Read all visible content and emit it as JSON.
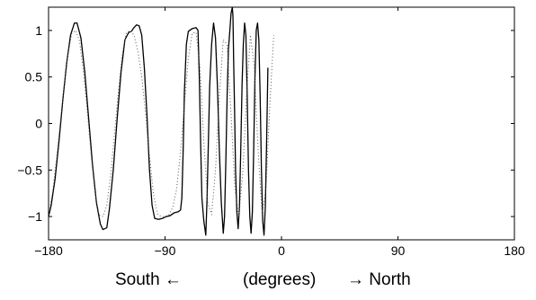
{
  "chart_data": {
    "type": "line",
    "xlim": [
      -180,
      180
    ],
    "ylim": [
      -1.25,
      1.25
    ],
    "xticks": [
      -180,
      -90,
      0,
      90,
      180
    ],
    "xtick_labels": [
      "−180",
      "−90",
      "0",
      "90",
      "180"
    ],
    "yticks": [
      -1,
      -0.5,
      0,
      0.5,
      1
    ],
    "ytick_labels": [
      "−1",
      "−0.5",
      "0",
      "0.5",
      "1"
    ],
    "xlabel_left": "South ←",
    "xlabel_center": "(degrees)",
    "xlabel_right": "→ North",
    "grid": false,
    "series": [
      {
        "style": "solid",
        "color": "#000000",
        "points": [
          [
            -180,
            -1.0
          ],
          [
            -178,
            -0.88
          ],
          [
            -175,
            -0.6
          ],
          [
            -172,
            -0.2
          ],
          [
            -169,
            0.25
          ],
          [
            -166,
            0.65
          ],
          [
            -163,
            0.95
          ],
          [
            -160,
            1.08
          ],
          [
            -158,
            1.08
          ],
          [
            -155,
            0.92
          ],
          [
            -152,
            0.55
          ],
          [
            -149,
            0.05
          ],
          [
            -146,
            -0.45
          ],
          [
            -143,
            -0.85
          ],
          [
            -140,
            -1.08
          ],
          [
            -138,
            -1.14
          ],
          [
            -135,
            -1.12
          ],
          [
            -133,
            -0.92
          ],
          [
            -130,
            -0.5
          ],
          [
            -127,
            0.05
          ],
          [
            -124,
            0.55
          ],
          [
            -121,
            0.9
          ],
          [
            -118,
            0.98
          ],
          [
            -116,
            0.99
          ],
          [
            -114,
            1.03
          ],
          [
            -112,
            1.06
          ],
          [
            -110,
            1.05
          ],
          [
            -108,
            0.95
          ],
          [
            -106,
            0.6
          ],
          [
            -104,
            0.1
          ],
          [
            -102,
            -0.5
          ],
          [
            -100,
            -0.88
          ],
          [
            -98,
            -1.02
          ],
          [
            -95,
            -1.03
          ],
          [
            -92,
            -1.02
          ],
          [
            -89,
            -1.0
          ],
          [
            -86,
            -0.99
          ],
          [
            -83,
            -0.96
          ],
          [
            -80,
            -0.95
          ],
          [
            -78,
            -0.93
          ],
          [
            -77,
            -0.8
          ],
          [
            -76,
            -0.3
          ],
          [
            -75,
            0.35
          ],
          [
            -73.5,
            0.85
          ],
          [
            -72,
            0.99
          ],
          [
            -69,
            1.02
          ],
          [
            -66,
            1.03
          ],
          [
            -64.5,
            1.0
          ],
          [
            -63.5,
            0.5
          ],
          [
            -62.5,
            -0.2
          ],
          [
            -61.5,
            -0.8
          ],
          [
            -60,
            -1.05
          ],
          [
            -58.5,
            -1.2
          ],
          [
            -57.5,
            -0.8
          ],
          [
            -56.5,
            -0.2
          ],
          [
            -55.5,
            0.4
          ],
          [
            -54,
            0.85
          ],
          [
            -52.5,
            1.08
          ],
          [
            -51,
            0.92
          ],
          [
            -49.5,
            0.4
          ],
          [
            -48,
            -0.3
          ],
          [
            -46.5,
            -0.85
          ],
          [
            -45,
            -1.18
          ],
          [
            -44,
            -1.0
          ],
          [
            -43,
            -0.4
          ],
          [
            -42,
            0.3
          ],
          [
            -41,
            0.8
          ],
          [
            -40,
            0.98
          ],
          [
            -39,
            1.18
          ],
          [
            -38,
            1.25
          ],
          [
            -37.5,
            1.15
          ],
          [
            -37,
            0.7
          ],
          [
            -36.2,
            0.1
          ],
          [
            -35.5,
            -0.5
          ],
          [
            -34.5,
            -0.95
          ],
          [
            -33.5,
            -1.13
          ],
          [
            -32.5,
            -0.9
          ],
          [
            -31.5,
            -0.3
          ],
          [
            -30.5,
            0.4
          ],
          [
            -29.5,
            0.85
          ],
          [
            -28.5,
            1.08
          ],
          [
            -27.5,
            0.95
          ],
          [
            -26.5,
            0.3
          ],
          [
            -25.5,
            -0.5
          ],
          [
            -24.5,
            -1.0
          ],
          [
            -23.5,
            -1.18
          ],
          [
            -22.5,
            -0.95
          ],
          [
            -21.5,
            -0.3
          ],
          [
            -20.5,
            0.5
          ],
          [
            -19.5,
            1.0
          ],
          [
            -18.5,
            1.08
          ],
          [
            -17.5,
            0.9
          ],
          [
            -16.5,
            0.3
          ],
          [
            -15.5,
            -0.5
          ],
          [
            -14.5,
            -1.05
          ],
          [
            -13.5,
            -1.2
          ],
          [
            -12.5,
            -0.9
          ],
          [
            -11.5,
            -0.2
          ],
          [
            -10.5,
            0.6
          ]
        ]
      },
      {
        "style": "dotted",
        "color": "#555555",
        "points": [
          [
            -180,
            -0.98
          ],
          [
            -177,
            -0.75
          ],
          [
            -174,
            -0.4
          ],
          [
            -171,
            0.0
          ],
          [
            -168,
            0.4
          ],
          [
            -165,
            0.75
          ],
          [
            -162,
            0.97
          ],
          [
            -159,
            1.0
          ],
          [
            -156,
            0.88
          ],
          [
            -153,
            0.55
          ],
          [
            -150,
            0.12
          ],
          [
            -147,
            -0.35
          ],
          [
            -144,
            -0.75
          ],
          [
            -141,
            -0.98
          ],
          [
            -138,
            -1.0
          ],
          [
            -135,
            -0.88
          ],
          [
            -132,
            -0.55
          ],
          [
            -129,
            -0.1
          ],
          [
            -126,
            0.35
          ],
          [
            -123,
            0.75
          ],
          [
            -120,
            0.97
          ],
          [
            -117,
            1.0
          ],
          [
            -114,
            0.95
          ],
          [
            -111,
            0.78
          ],
          [
            -108,
            0.5
          ],
          [
            -105,
            0.1
          ],
          [
            -102,
            -0.35
          ],
          [
            -99,
            -0.75
          ],
          [
            -96,
            -0.97
          ],
          [
            -93,
            -1.0
          ],
          [
            -90,
            -1.0
          ],
          [
            -87,
            -0.98
          ],
          [
            -84,
            -0.9
          ],
          [
            -81,
            -0.7
          ],
          [
            -78,
            -0.3
          ],
          [
            -75,
            0.2
          ],
          [
            -72,
            0.7
          ],
          [
            -69,
            0.97
          ],
          [
            -66,
            0.98
          ],
          [
            -63,
            0.6
          ],
          [
            -60,
            -0.2
          ],
          [
            -57,
            -0.85
          ],
          [
            -54,
            -0.98
          ],
          [
            -51,
            -0.5
          ],
          [
            -48,
            0.3
          ],
          [
            -45,
            0.9
          ],
          [
            -42,
            0.85
          ],
          [
            -39,
            0.1
          ],
          [
            -36,
            -0.7
          ],
          [
            -33,
            -1.0
          ],
          [
            -30,
            -0.55
          ],
          [
            -27,
            0.3
          ],
          [
            -24,
            0.95
          ],
          [
            -21,
            0.6
          ],
          [
            -18,
            -0.3
          ],
          [
            -15,
            -0.98
          ],
          [
            -12,
            -0.7
          ],
          [
            -9,
            0.2
          ],
          [
            -6,
            0.95
          ]
        ]
      }
    ]
  }
}
